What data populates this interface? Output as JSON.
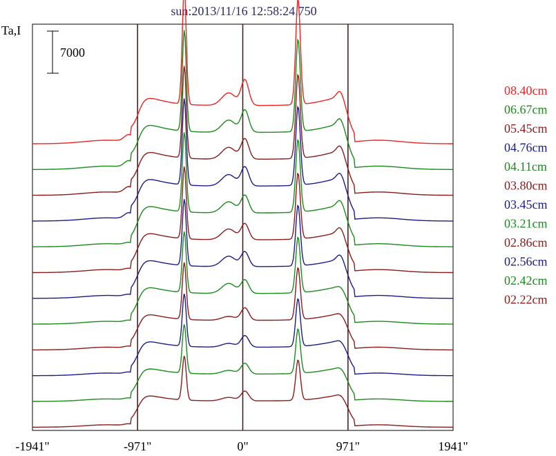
{
  "chart_data": {
    "type": "line",
    "title": "sun:2013/11/16 12:58:24.750",
    "ylabel": "Ta,I",
    "scale_bar_label": "7000",
    "x_ticks": [
      {
        "value": -1941,
        "label": "-1941\""
      },
      {
        "value": -971,
        "label": "-971\""
      },
      {
        "value": 0,
        "label": "0\""
      },
      {
        "value": 971,
        "label": "971\""
      },
      {
        "value": 1941,
        "label": "1941\""
      }
    ],
    "xlim": [
      -1941,
      1941
    ],
    "vertical_lines": [
      -971,
      0,
      971
    ],
    "legend_placement": "right",
    "grid": false,
    "series": [
      {
        "name": "08.40cm",
        "color": "#ee2222",
        "amplitude": 1.45
      },
      {
        "name": "06.67cm",
        "color": "#1a8a1a",
        "amplitude": 1.3
      },
      {
        "name": "05.45cm",
        "color": "#8b1a1a",
        "amplitude": 1.22
      },
      {
        "name": "04.76cm",
        "color": "#1a1a8b",
        "amplitude": 1.18
      },
      {
        "name": "04.11cm",
        "color": "#1a8a1a",
        "amplitude": 1.12
      },
      {
        "name": "03.80cm",
        "color": "#8b1a1a",
        "amplitude": 1.05
      },
      {
        "name": "03.45cm",
        "color": "#1a1a8b",
        "amplitude": 1.0
      },
      {
        "name": "03.21cm",
        "color": "#1a8a1a",
        "amplitude": 0.95
      },
      {
        "name": "02.86cm",
        "color": "#8b1a1a",
        "amplitude": 0.92
      },
      {
        "name": "02.56cm",
        "color": "#1a1a8b",
        "amplitude": 0.88
      },
      {
        "name": "02.42cm",
        "color": "#1a8a1a",
        "amplitude": 0.85
      },
      {
        "name": "02.22cm",
        "color": "#8b1a1a",
        "amplitude": 0.8
      }
    ]
  }
}
